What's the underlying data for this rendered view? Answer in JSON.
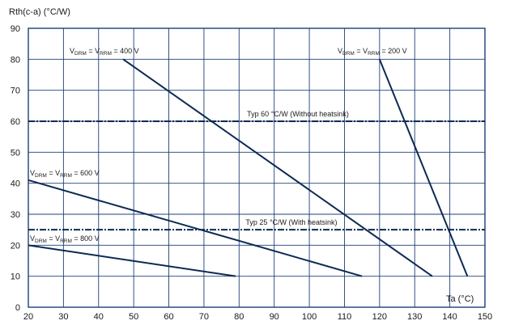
{
  "chart_data": {
    "type": "line",
    "ylabel": "Rth(c-a) (°C/W)",
    "xlabel": "Ta (°C)",
    "xlim": [
      20,
      150
    ],
    "ylim": [
      0,
      90
    ],
    "x_ticks": [
      20,
      30,
      40,
      50,
      60,
      70,
      80,
      90,
      100,
      110,
      120,
      130,
      140,
      150
    ],
    "y_ticks": [
      0,
      10,
      20,
      30,
      40,
      50,
      60,
      70,
      80,
      90
    ],
    "grid": true,
    "colors": {
      "line": "#0d2a52",
      "grid": "#1f3f78",
      "frame": "#1f3f78"
    },
    "series": [
      {
        "key": "v400",
        "label_main": "V",
        "label_sub1": "DRM",
        "label_mid": " = V",
        "label_sub2": "RRM",
        "label_end": " = 400 V",
        "x": [
          47,
          135
        ],
        "y": [
          80,
          10
        ]
      },
      {
        "key": "v200",
        "label_main": "V",
        "label_sub1": "DRM",
        "label_mid": " = V",
        "label_sub2": "RRM",
        "label_end": " = 200 V",
        "x": [
          120,
          145
        ],
        "y": [
          80,
          10
        ]
      },
      {
        "key": "v600",
        "label_main": "V",
        "label_sub1": "DRM",
        "label_mid": " = V",
        "label_sub2": "RRM",
        "label_end": " = 600 V",
        "x": [
          20,
          115
        ],
        "y": [
          41,
          10
        ]
      },
      {
        "key": "v800",
        "label_main": "V",
        "label_sub1": "DRM",
        "label_mid": " = V",
        "label_sub2": "RRM",
        "label_end": " = 800 V",
        "x": [
          20,
          79
        ],
        "y": [
          20,
          10
        ]
      }
    ],
    "reference_lines": [
      {
        "key": "typ60",
        "y": 60,
        "label": "Typ 60 °C/W (Without heatsink)"
      },
      {
        "key": "typ25",
        "y": 25,
        "label": "Typ 25 °C/W (With heatsink)"
      }
    ]
  }
}
